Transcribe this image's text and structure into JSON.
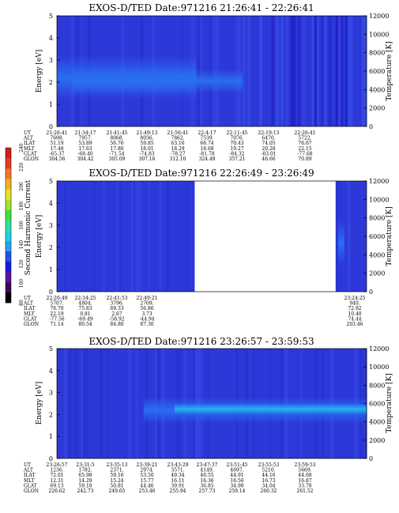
{
  "colorbar": {
    "label": "Second Harmonic Current",
    "ticks": [
      "240",
      "220",
      "200",
      "180",
      "160",
      "140",
      "120",
      "100",
      "80"
    ],
    "ticks_values": [
      240,
      220,
      200,
      180,
      160,
      140,
      120,
      100,
      80
    ],
    "colors": [
      "#000000",
      "#3a0a55",
      "#5a14a0",
      "#1a1adc",
      "#2650f0",
      "#28a0f0",
      "#20d2e6",
      "#30e0a0",
      "#40e040",
      "#a0e628",
      "#e6e628",
      "#f0b41e",
      "#f07828",
      "#e63c1e",
      "#d21e1e"
    ]
  },
  "row_labels": [
    "UT",
    "ALT",
    "ILAT",
    "MLT",
    "GLAT",
    "GLON"
  ],
  "chart_data": [
    {
      "type": "heatmap",
      "title": "EXOS-D/TED   Date:971216  21:26:41 - 22:26:41",
      "ylabel": "Energy [eV]",
      "y2label": "Temperature [K]",
      "ylim": [
        0,
        5
      ],
      "yticks": [
        "0",
        "1",
        "2",
        "3",
        "4",
        "5"
      ],
      "y2lim": [
        0,
        12000
      ],
      "y2ticks": [
        "0",
        "2000",
        "4000",
        "6000",
        "8000",
        "10000",
        "12000"
      ],
      "bands": [
        {
          "x": [
            0.0,
            0.45
          ],
          "y": [
            1.2,
            3.2
          ],
          "level": "high"
        },
        {
          "x": [
            0.05,
            0.6
          ],
          "y": [
            1.5,
            2.6
          ],
          "level": "mid"
        }
      ],
      "table": {
        "UT": [
          "21:26:41",
          "21:34:17",
          "21:41:45",
          "21:49:13",
          "21:56:41",
          "22:4:17",
          "22:11:45",
          "22:19:13",
          "22:26:41"
        ],
        "ALT": [
          "7698.",
          "7957.",
          "8068.",
          "8036.",
          "7862.",
          "7539.",
          "7076.",
          "6470.",
          "5722."
        ],
        "ILAT": [
          "51.19",
          "53.89",
          "56.76",
          "59.85",
          "63.16",
          "66.74",
          "70.43",
          "74.05",
          "76.67"
        ],
        "MLT": [
          "17.48",
          "17.63",
          "17.80",
          "18.01",
          "18.29",
          "18.68",
          "19.27",
          "20.28",
          "22.15"
        ],
        "GLAT": [
          "-65.37",
          "-68.40",
          "-71.54",
          "-74.83",
          "-78.27",
          "-81.78",
          "-84.32",
          "-83.01",
          "-77.68"
        ],
        "GLON": [
          "304.56",
          "304.42",
          "305.09",
          "307.16",
          "312.10",
          "324.49",
          "357.21",
          "46.66",
          "70.89"
        ]
      }
    },
    {
      "type": "heatmap",
      "title": "EXOS-D/TED   Date:971216  22:26:49 - 23:26:49",
      "ylabel": "Energy [eV]",
      "y2label": "Temperature [K]",
      "ylim": [
        0,
        5
      ],
      "yticks": [
        "0",
        "1",
        "2",
        "3",
        "4",
        "5"
      ],
      "y2lim": [
        0,
        12000
      ],
      "y2ticks": [
        "0",
        "2000",
        "4000",
        "6000",
        "8000",
        "10000",
        "12000"
      ],
      "data_gap": [
        0.445,
        0.9
      ],
      "table": {
        "UT": [
          "22:26:49",
          "22:34:25",
          "22:41:53",
          "22:49:21",
          "23:24:25"
        ],
        "ALT": [
          "5707.",
          "4804.",
          "3796.",
          "2709.",
          "940."
        ],
        "ILAT": [
          "76.70",
          "75.83",
          "69.33",
          "56.86",
          "72.92"
        ],
        "MLT": [
          "22.19",
          "0.81",
          "2.67",
          "3.73",
          "10.40"
        ],
        "GLAT": [
          "-77.56",
          "-69.49",
          "-58.92",
          "-44.94",
          "74.44"
        ],
        "GLON": [
          "71.14",
          "80.54",
          "84.80",
          "87.30",
          "203.46"
        ]
      }
    },
    {
      "type": "heatmap",
      "title": "EXOS-D/TED   Date:971216  23:26:57 - 23:59:53",
      "ylabel": "Energy [eV]",
      "y2label": "Temperature [K]",
      "ylim": [
        0,
        5
      ],
      "yticks": [
        "0",
        "1",
        "2",
        "3",
        "4",
        "5"
      ],
      "y2lim": [
        0,
        12000
      ],
      "y2ticks": [
        "0",
        "2000",
        "4000",
        "6000",
        "8000",
        "10000",
        "12000"
      ],
      "bands": [
        {
          "x": [
            0.28,
            1.0
          ],
          "y": [
            1.6,
            2.8
          ],
          "level": "high"
        },
        {
          "x": [
            0.38,
            1.0
          ],
          "y": [
            2.0,
            2.5
          ],
          "level": "peak"
        }
      ],
      "table": {
        "UT": [
          "23:26:57",
          "23:31:5",
          "23:35:13",
          "23:39:21",
          "23:43:29",
          "23:47:37",
          "23:51:45",
          "23:55:53",
          "23:59:53"
        ],
        "ALT": [
          "1236.",
          "1782.",
          "2371.",
          "2974.",
          "3571.",
          "4149.",
          "4697.",
          "5210.",
          "5669."
        ],
        "ILAT": [
          "72.01",
          "65.98",
          "59.16",
          "53.50",
          "49.34",
          "46.55",
          "44.91",
          "44.16",
          "44.08"
        ],
        "MLT": [
          "12.31",
          "14.29",
          "15.24",
          "15.77",
          "16.11",
          "16.36",
          "16.56",
          "16.73",
          "16.87"
        ],
        "GLAT": [
          "69.13",
          "59.18",
          "50.81",
          "44.46",
          "39.91",
          "36.85",
          "34.98",
          "34.04",
          "33.78"
        ],
        "GLON": [
          "226.62",
          "242.73",
          "249.65",
          "253.46",
          "255.94",
          "257.73",
          "259.14",
          "260.32",
          "261.52"
        ]
      }
    }
  ]
}
